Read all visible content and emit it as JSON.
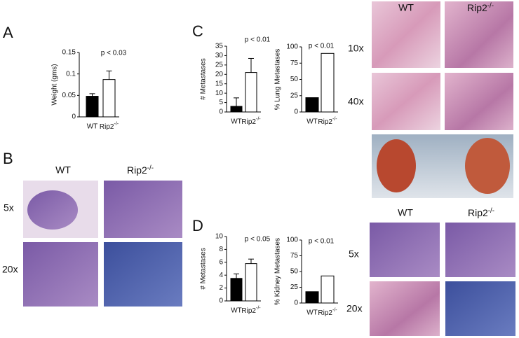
{
  "panels": {
    "letters": [
      "A",
      "B",
      "C",
      "D"
    ],
    "lung": {
      "columns": [
        "WT",
        "Rip2-/-"
      ],
      "rows": [
        "10x",
        "40x"
      ]
    },
    "tumor": {
      "columns": [
        "WT",
        "Rip2-/-"
      ],
      "rows": [
        "5x",
        "20x"
      ]
    },
    "kidney": {
      "columns": [
        "WT",
        "Rip2-/-"
      ],
      "rows": [
        "5x",
        "20x"
      ]
    }
  },
  "chart_data": [
    {
      "type": "bar",
      "ylabel": "Weight (gms)",
      "annotation": "p < 0.03",
      "categories": [
        "WT",
        "Rip2-/-"
      ],
      "values": [
        0.048,
        0.087
      ],
      "errors": [
        0.006,
        0.02
      ],
      "colors": [
        "#000000",
        "#ffffff"
      ],
      "ylim": [
        0,
        0.15
      ],
      "yticks": [
        0,
        0.05,
        0.1,
        0.15
      ]
    },
    {
      "type": "bar",
      "ylabel": "# Metastases",
      "annotation": "p < 0.01",
      "categories": [
        "WT",
        "Rip2-/-"
      ],
      "values": [
        3,
        21
      ],
      "errors": [
        4.5,
        7.5
      ],
      "colors": [
        "#000000",
        "#ffffff"
      ],
      "ylim": [
        0,
        35
      ],
      "yticks": [
        0,
        5,
        10,
        15,
        20,
        25,
        30,
        35
      ]
    },
    {
      "type": "bar",
      "ylabel": "% Lung Metastases",
      "annotation": "p < 0.01",
      "categories": [
        "WT",
        "Rip2-/-"
      ],
      "values": [
        22,
        90
      ],
      "colors": [
        "#000000",
        "#ffffff"
      ],
      "ylim": [
        0,
        100
      ],
      "yticks": [
        0,
        25,
        50,
        75,
        100
      ]
    },
    {
      "type": "bar",
      "ylabel": "# Metastases",
      "annotation": "p < 0.05",
      "categories": [
        "WT",
        "Rip2-/-"
      ],
      "values": [
        3.5,
        5.8
      ],
      "errors": [
        0.7,
        0.7
      ],
      "colors": [
        "#000000",
        "#ffffff"
      ],
      "ylim": [
        0,
        10
      ],
      "yticks": [
        0,
        2,
        4,
        6,
        8,
        10
      ]
    },
    {
      "type": "bar",
      "ylabel": "% Kidney Metastases",
      "annotation": "p < 0.01",
      "categories": [
        "WT",
        "Rip2-/-"
      ],
      "values": [
        18,
        43
      ],
      "colors": [
        "#000000",
        "#ffffff"
      ],
      "ylim": [
        0,
        100
      ],
      "yticks": [
        0,
        25,
        50,
        75,
        100
      ]
    }
  ]
}
